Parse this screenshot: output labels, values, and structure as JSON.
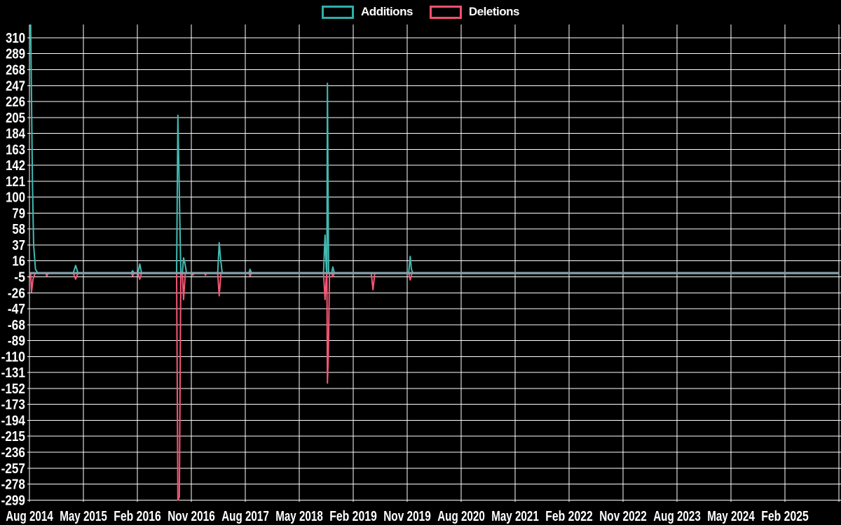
{
  "legend": {
    "items": [
      {
        "label": "Additions",
        "color": "#2fafaa"
      },
      {
        "label": "Deletions",
        "color": "#f4516c"
      }
    ]
  },
  "chart_data": {
    "type": "line",
    "title": "",
    "xlabel": "",
    "ylabel": "",
    "background_color": "#000000",
    "grid": true,
    "grid_color": "#ffffff",
    "label_color": "#ffffff",
    "baseline_color": "#86a2ac",
    "legend_position": "top-center",
    "x_tick_labels": [
      "Aug 2014",
      "May 2015",
      "Feb 2016",
      "Nov 2016",
      "Aug 2017",
      "May 2018",
      "Feb 2019",
      "Nov 2019",
      "Aug 2020",
      "May 2021",
      "Feb 2022",
      "Nov 2022",
      "Aug 2023",
      "May 2024",
      "Feb 2025"
    ],
    "x_months_per_tick": 9,
    "n_vertical_gridlines": 16,
    "y_ticks": [
      310,
      289,
      268,
      247,
      226,
      205,
      184,
      163,
      142,
      121,
      100,
      79,
      58,
      37,
      16,
      -5,
      -26,
      -47,
      -68,
      -89,
      -110,
      -131,
      -152,
      -173,
      -194,
      -215,
      -236,
      -257,
      -278,
      -299
    ],
    "y_tick_step": 21,
    "ylim": [
      -301.5,
      327.5
    ],
    "x_domain_months": [
      0,
      134.8
    ],
    "series": [
      {
        "name": "Additions",
        "color": "#42bab3",
        "points": [
          [
            0.2,
            330
          ],
          [
            0.5,
            120
          ],
          [
            0.7,
            37
          ],
          [
            1.0,
            5
          ],
          [
            1.4,
            0
          ],
          [
            7.3,
            0
          ],
          [
            7.7,
            10
          ],
          [
            8.1,
            0
          ],
          [
            17.0,
            0
          ],
          [
            17.2,
            3
          ],
          [
            17.45,
            0
          ],
          [
            18.1,
            0
          ],
          [
            18.4,
            12
          ],
          [
            18.7,
            0
          ],
          [
            24.55,
            0
          ],
          [
            24.75,
            208
          ],
          [
            25.0,
            105
          ],
          [
            25.25,
            0
          ],
          [
            25.5,
            0
          ],
          [
            25.7,
            20
          ],
          [
            25.95,
            12
          ],
          [
            26.2,
            0
          ],
          [
            31.4,
            0
          ],
          [
            31.65,
            40
          ],
          [
            31.9,
            17
          ],
          [
            32.15,
            0
          ],
          [
            36.6,
            0
          ],
          [
            36.8,
            5
          ],
          [
            37.05,
            0
          ],
          [
            49.05,
            0
          ],
          [
            49.3,
            50
          ],
          [
            49.5,
            6
          ],
          [
            49.6,
            0
          ],
          [
            49.7,
            250
          ],
          [
            49.9,
            0
          ],
          [
            50.4,
            0
          ],
          [
            50.6,
            8
          ],
          [
            50.85,
            0
          ],
          [
            63.25,
            0
          ],
          [
            63.5,
            22
          ],
          [
            63.7,
            5
          ],
          [
            63.95,
            0
          ],
          [
            134.8,
            0
          ]
        ]
      },
      {
        "name": "Deletions",
        "color": "#f35875",
        "points": [
          [
            0.2,
            0
          ],
          [
            0.35,
            -25
          ],
          [
            0.6,
            -8
          ],
          [
            0.95,
            0
          ],
          [
            2.7,
            0
          ],
          [
            2.9,
            -4
          ],
          [
            3.15,
            0
          ],
          [
            7.3,
            0
          ],
          [
            7.7,
            -8
          ],
          [
            8.1,
            0
          ],
          [
            17.0,
            0
          ],
          [
            17.2,
            -4
          ],
          [
            17.45,
            0
          ],
          [
            18.1,
            0
          ],
          [
            18.4,
            -8
          ],
          [
            18.7,
            0
          ],
          [
            24.55,
            0
          ],
          [
            24.75,
            -299
          ],
          [
            25.0,
            -295
          ],
          [
            25.25,
            0
          ],
          [
            25.5,
            0
          ],
          [
            25.7,
            -35
          ],
          [
            26.0,
            0
          ],
          [
            27.1,
            0
          ],
          [
            27.25,
            -3
          ],
          [
            27.45,
            0
          ],
          [
            29.2,
            0
          ],
          [
            29.35,
            -3
          ],
          [
            29.55,
            0
          ],
          [
            31.4,
            0
          ],
          [
            31.65,
            -30
          ],
          [
            31.95,
            0
          ],
          [
            36.6,
            0
          ],
          [
            36.8,
            -4
          ],
          [
            37.05,
            0
          ],
          [
            49.05,
            0
          ],
          [
            49.3,
            -35
          ],
          [
            49.5,
            -6
          ],
          [
            49.6,
            0
          ],
          [
            49.7,
            -145
          ],
          [
            49.85,
            -108
          ],
          [
            50.05,
            0
          ],
          [
            50.4,
            0
          ],
          [
            50.6,
            -5
          ],
          [
            50.85,
            0
          ],
          [
            57.0,
            0
          ],
          [
            57.3,
            -22
          ],
          [
            57.6,
            0
          ],
          [
            63.25,
            0
          ],
          [
            63.5,
            -9
          ],
          [
            63.8,
            0
          ],
          [
            134.8,
            0
          ]
        ]
      }
    ]
  }
}
